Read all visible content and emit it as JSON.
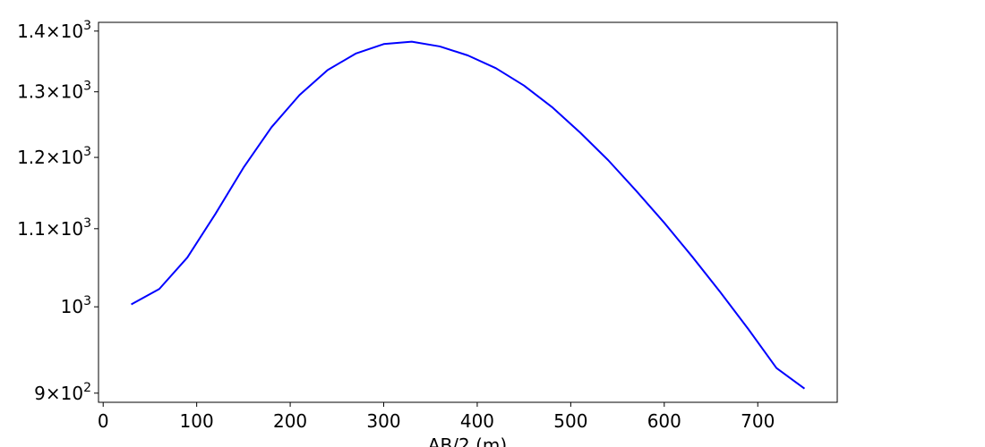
{
  "chart_data": {
    "type": "line",
    "title": "",
    "xlabel": "AB/2 (m)",
    "ylabel": "",
    "xscale": "linear",
    "yscale": "log",
    "xlim": [
      -5,
      785
    ],
    "ylim": [
      890,
      1415
    ],
    "grid": false,
    "legend": "none",
    "x_ticks": [
      {
        "value": 0,
        "label": "0"
      },
      {
        "value": 100,
        "label": "100"
      },
      {
        "value": 200,
        "label": "200"
      },
      {
        "value": 300,
        "label": "300"
      },
      {
        "value": 400,
        "label": "400"
      },
      {
        "value": 500,
        "label": "500"
      },
      {
        "value": 600,
        "label": "600"
      },
      {
        "value": 700,
        "label": "700"
      }
    ],
    "y_ticks": [
      {
        "value": 900,
        "mantissa": "9",
        "base": "10",
        "exponent": "2"
      },
      {
        "value": 1000,
        "mantissa": "",
        "base": "10",
        "exponent": "3"
      },
      {
        "value": 1100,
        "mantissa": "1.1",
        "base": "10",
        "exponent": "3"
      },
      {
        "value": 1200,
        "mantissa": "1.2",
        "base": "10",
        "exponent": "3"
      },
      {
        "value": 1300,
        "mantissa": "1.3",
        "base": "10",
        "exponent": "3"
      },
      {
        "value": 1400,
        "mantissa": "1.4",
        "base": "10",
        "exponent": "3"
      }
    ],
    "series": [
      {
        "color": "#0000ff",
        "x": [
          30,
          60,
          90,
          120,
          150,
          180,
          210,
          240,
          270,
          300,
          330,
          360,
          390,
          420,
          450,
          480,
          510,
          540,
          570,
          600,
          630,
          660,
          690,
          720,
          750
        ],
        "y": [
          1003,
          1022,
          1062,
          1120,
          1185,
          1245,
          1295,
          1335,
          1362,
          1378,
          1382,
          1374,
          1359,
          1338,
          1310,
          1276,
          1237,
          1196,
          1152,
          1108,
          1063,
          1018,
          973,
          928,
          905
        ]
      }
    ]
  }
}
